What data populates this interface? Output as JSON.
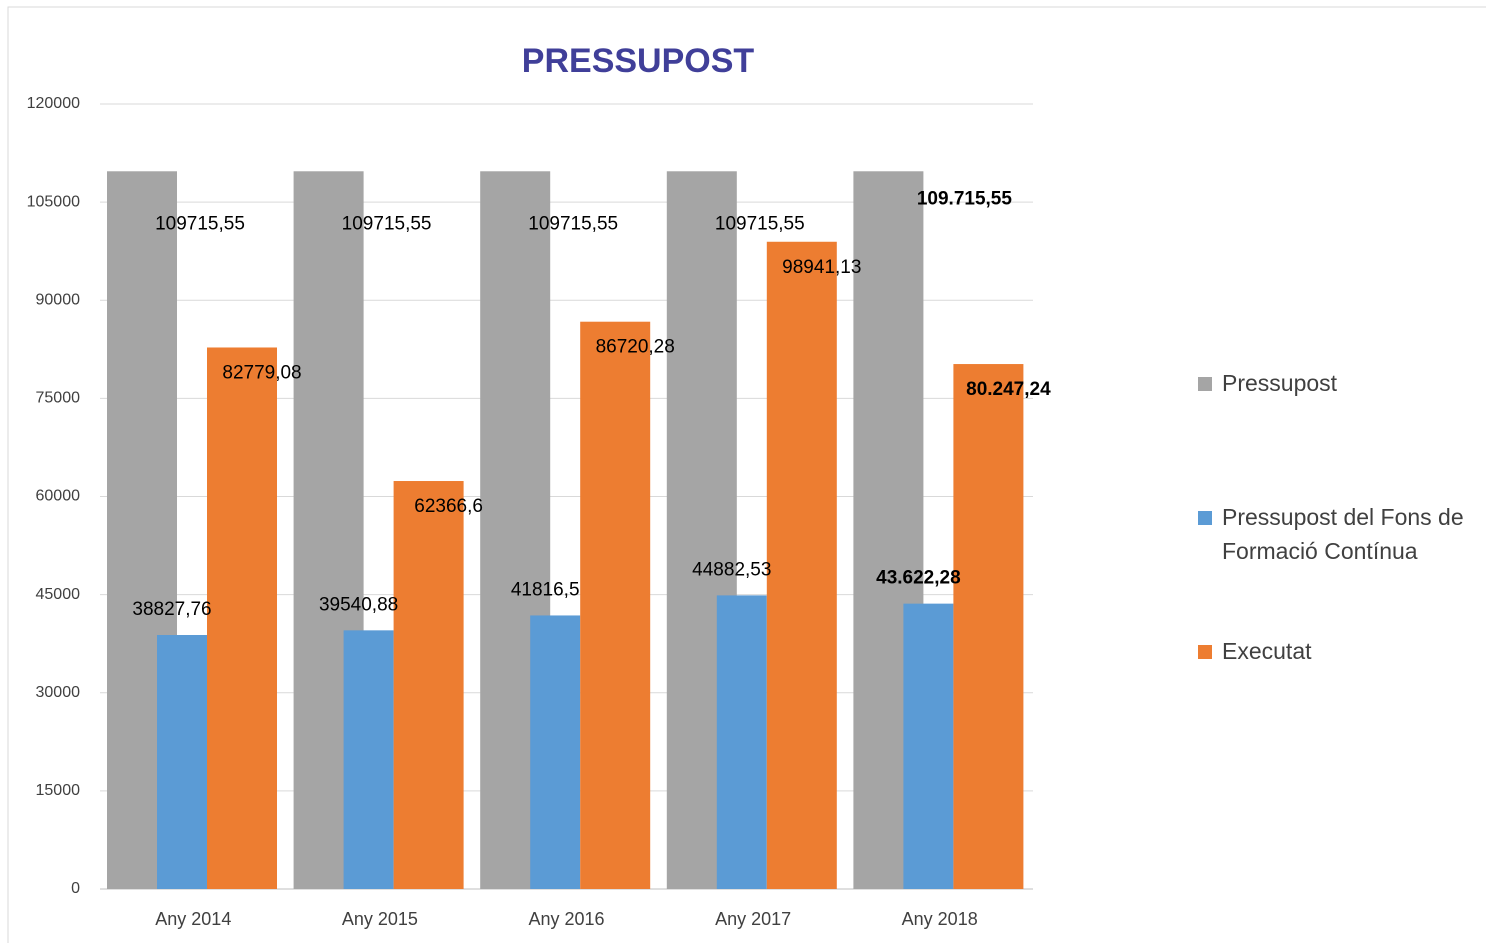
{
  "chart_data": {
    "type": "bar",
    "title": "PRESSUPOST",
    "categories": [
      "Any 2014",
      "Any 2015",
      "Any 2016",
      "Any 2017",
      "Any 2018"
    ],
    "series": [
      {
        "name": "Pressupost",
        "color": "#a5a5a5",
        "values": [
          109715.55,
          109715.55,
          109715.55,
          109715.55,
          109715.55
        ],
        "value_labels": [
          "109715,55",
          "109715,55",
          "109715,55",
          "109715,55",
          "109.715,55"
        ]
      },
      {
        "name": "Pressupost del Fons de Formació Contínua",
        "color": "#5b9bd5",
        "values": [
          38827.76,
          39540.88,
          41816.5,
          44882.53,
          43622.28
        ],
        "value_labels": [
          "38827,76",
          "39540,88",
          "41816,5",
          "44882,53",
          "43.622,28"
        ]
      },
      {
        "name": "Executat",
        "color": "#ed7d31",
        "values": [
          82779.08,
          62366.6,
          86720.28,
          98941.13,
          80247.24
        ],
        "value_labels": [
          "82779,08",
          "62366,6",
          "86720,28",
          "98941,13",
          "80.247,24"
        ]
      }
    ],
    "ylim": [
      0,
      120000
    ],
    "yticks": [
      0,
      15000,
      30000,
      45000,
      60000,
      75000,
      90000,
      105000,
      120000
    ],
    "grid": true,
    "legend": "right"
  }
}
